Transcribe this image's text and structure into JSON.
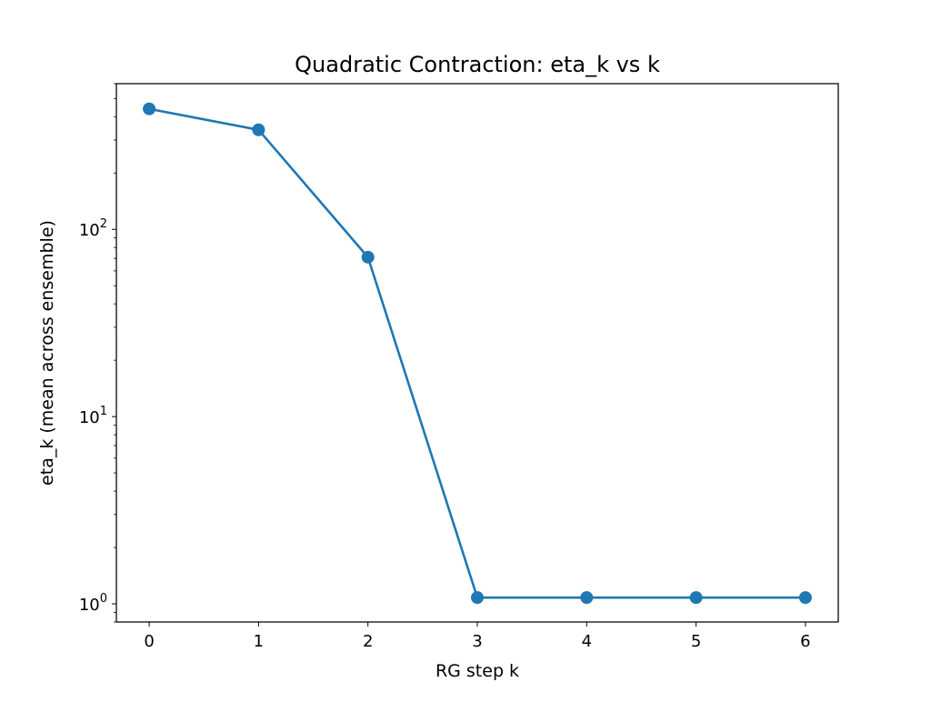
{
  "chart_data": {
    "type": "line",
    "title": "Quadratic Contraction: eta_k vs k",
    "xlabel": "RG step k",
    "ylabel": "eta_k (mean across ensemble)",
    "x": [
      0,
      1,
      2,
      3,
      4,
      5,
      6
    ],
    "series": [
      {
        "values": [
          440,
          340,
          71,
          1.08,
          1.08,
          1.08,
          1.08
        ],
        "color": "#1f77b4",
        "marker": "circle"
      }
    ],
    "xlim": [
      -0.3,
      6.3
    ],
    "ylim": [
      0.8,
      600
    ],
    "yscale": "log",
    "xticks": [
      {
        "value": 0,
        "label": "0"
      },
      {
        "value": 1,
        "label": "1"
      },
      {
        "value": 2,
        "label": "2"
      },
      {
        "value": 3,
        "label": "3"
      },
      {
        "value": 4,
        "label": "4"
      },
      {
        "value": 5,
        "label": "5"
      },
      {
        "value": 6,
        "label": "6"
      }
    ],
    "yticks": [
      {
        "value": 1,
        "base": "10",
        "exp": "0"
      },
      {
        "value": 10,
        "base": "10",
        "exp": "1"
      },
      {
        "value": 100,
        "base": "10",
        "exp": "2"
      }
    ],
    "grid": false,
    "legend": "none"
  }
}
